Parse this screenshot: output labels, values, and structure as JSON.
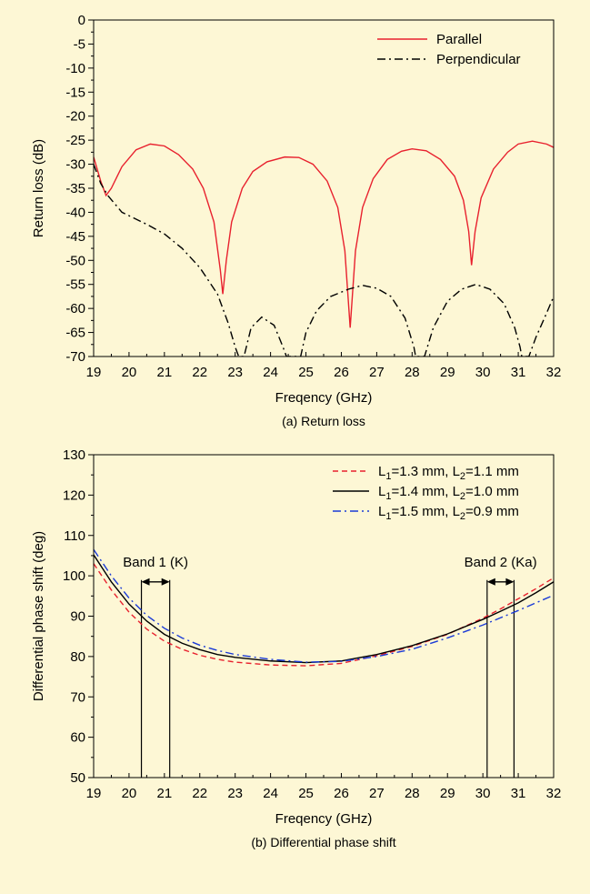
{
  "chart_data": [
    {
      "type": "line",
      "caption": "(a) Return loss",
      "xlabel": "Freqency (GHz)",
      "ylabel": "Return loss (dB)",
      "xlim": [
        19,
        32
      ],
      "ylim": [
        -70,
        0
      ],
      "xticks": [
        "19",
        "20",
        "21",
        "22",
        "23",
        "24",
        "25",
        "26",
        "27",
        "28",
        "29",
        "30",
        "31",
        "32"
      ],
      "yticks": [
        "0",
        "-5",
        "-10",
        "-15",
        "-20",
        "-25",
        "-30",
        "-35",
        "-40",
        "-45",
        "-50",
        "-55",
        "-60",
        "-65",
        "-70"
      ],
      "legend_position": "top-right",
      "grid": false,
      "series": [
        {
          "name": "Parallel",
          "color": "#e8212e",
          "dash": "solid",
          "points": [
            [
              19.0,
              -28.5
            ],
            [
              19.2,
              -33.5
            ],
            [
              19.35,
              -36.5
            ],
            [
              19.5,
              -35.0
            ],
            [
              19.8,
              -30.5
            ],
            [
              20.2,
              -27.0
            ],
            [
              20.6,
              -25.8
            ],
            [
              21.0,
              -26.2
            ],
            [
              21.4,
              -28.0
            ],
            [
              21.8,
              -31.0
            ],
            [
              22.1,
              -35.0
            ],
            [
              22.4,
              -42.0
            ],
            [
              22.58,
              -52.0
            ],
            [
              22.65,
              -57.0
            ],
            [
              22.75,
              -50.0
            ],
            [
              22.9,
              -42.0
            ],
            [
              23.2,
              -35.0
            ],
            [
              23.5,
              -31.5
            ],
            [
              23.9,
              -29.5
            ],
            [
              24.4,
              -28.5
            ],
            [
              24.8,
              -28.6
            ],
            [
              25.2,
              -30.0
            ],
            [
              25.6,
              -33.5
            ],
            [
              25.9,
              -39.0
            ],
            [
              26.1,
              -48.0
            ],
            [
              26.25,
              -64.0
            ],
            [
              26.4,
              -48.0
            ],
            [
              26.6,
              -39.0
            ],
            [
              26.9,
              -33.0
            ],
            [
              27.3,
              -29.0
            ],
            [
              27.7,
              -27.3
            ],
            [
              28.0,
              -26.8
            ],
            [
              28.4,
              -27.2
            ],
            [
              28.8,
              -29.0
            ],
            [
              29.2,
              -32.5
            ],
            [
              29.45,
              -37.5
            ],
            [
              29.6,
              -44.0
            ],
            [
              29.68,
              -51.0
            ],
            [
              29.78,
              -44.0
            ],
            [
              29.95,
              -37.0
            ],
            [
              30.3,
              -31.0
            ],
            [
              30.7,
              -27.5
            ],
            [
              31.0,
              -25.8
            ],
            [
              31.4,
              -25.2
            ],
            [
              31.8,
              -25.8
            ],
            [
              32.0,
              -26.5
            ]
          ]
        },
        {
          "name": "Perpendicular",
          "color": "#000000",
          "dash": "dashdot",
          "points": [
            [
              19.0,
              -30.0
            ],
            [
              19.2,
              -34.0
            ],
            [
              19.4,
              -36.5
            ],
            [
              19.8,
              -40.0
            ],
            [
              20.5,
              -42.5
            ],
            [
              21.0,
              -44.5
            ],
            [
              21.5,
              -47.5
            ],
            [
              22.0,
              -51.5
            ],
            [
              22.5,
              -57.0
            ],
            [
              22.8,
              -63.0
            ],
            [
              23.0,
              -68.0
            ],
            [
              23.1,
              -70.0
            ],
            [
              23.25,
              -70.0
            ],
            [
              23.45,
              -64.0
            ],
            [
              23.75,
              -61.8
            ],
            [
              24.1,
              -63.5
            ],
            [
              24.35,
              -68.0
            ],
            [
              24.45,
              -70.0
            ],
            [
              24.85,
              -70.0
            ],
            [
              25.0,
              -65.0
            ],
            [
              25.3,
              -60.5
            ],
            [
              25.7,
              -57.5
            ],
            [
              26.2,
              -56.0
            ],
            [
              26.6,
              -55.2
            ],
            [
              27.0,
              -55.8
            ],
            [
              27.4,
              -57.5
            ],
            [
              27.8,
              -62.0
            ],
            [
              28.05,
              -68.0
            ],
            [
              28.1,
              -70.0
            ],
            [
              28.35,
              -70.0
            ],
            [
              28.6,
              -64.0
            ],
            [
              29.0,
              -58.5
            ],
            [
              29.4,
              -56.0
            ],
            [
              29.8,
              -55.0
            ],
            [
              30.2,
              -56.0
            ],
            [
              30.6,
              -59.0
            ],
            [
              30.9,
              -64.0
            ],
            [
              31.05,
              -68.0
            ],
            [
              31.1,
              -70.0
            ],
            [
              31.3,
              -70.0
            ],
            [
              31.5,
              -66.0
            ],
            [
              31.8,
              -61.0
            ],
            [
              32.0,
              -57.5
            ]
          ]
        }
      ]
    },
    {
      "type": "line",
      "caption": "(b) Differential phase shift",
      "xlabel": "Freqency (GHz)",
      "ylabel": "Differential phase shift (deg)",
      "xlim": [
        19,
        32
      ],
      "ylim": [
        50,
        130
      ],
      "xticks": [
        "19",
        "20",
        "21",
        "22",
        "23",
        "24",
        "25",
        "26",
        "27",
        "28",
        "29",
        "30",
        "31",
        "32"
      ],
      "yticks": [
        "50",
        "60",
        "70",
        "80",
        "90",
        "100",
        "110",
        "120",
        "130"
      ],
      "legend_position": "top-right",
      "grid": false,
      "series": [
        {
          "name_parts": [
            "L",
            "1",
            "=1.3 mm, L",
            "2",
            "=1.1 mm"
          ],
          "color": "#e8212e",
          "dash": "dashed",
          "points": [
            [
              19.0,
              103.0
            ],
            [
              19.5,
              96.5
            ],
            [
              20.0,
              91.0
            ],
            [
              20.5,
              86.8
            ],
            [
              21.0,
              83.8
            ],
            [
              21.5,
              81.8
            ],
            [
              22.0,
              80.3
            ],
            [
              22.5,
              79.3
            ],
            [
              23.0,
              78.6
            ],
            [
              24.0,
              77.9
            ],
            [
              25.0,
              77.7
            ],
            [
              26.0,
              78.3
            ],
            [
              27.0,
              80.2
            ],
            [
              28.0,
              82.5
            ],
            [
              29.0,
              85.5
            ],
            [
              30.0,
              89.5
            ],
            [
              30.5,
              91.8
            ],
            [
              31.0,
              94.3
            ],
            [
              31.5,
              96.8
            ],
            [
              32.0,
              99.5
            ]
          ]
        },
        {
          "name_parts": [
            "L",
            "1",
            "=1.4 mm, L",
            "2",
            "=1.0 mm"
          ],
          "color": "#000000",
          "dash": "solid",
          "points": [
            [
              19.0,
              105.2
            ],
            [
              19.5,
              98.5
            ],
            [
              20.0,
              93.0
            ],
            [
              20.5,
              88.8
            ],
            [
              21.0,
              85.5
            ],
            [
              21.5,
              83.3
            ],
            [
              22.0,
              81.7
            ],
            [
              22.5,
              80.5
            ],
            [
              23.0,
              79.8
            ],
            [
              24.0,
              78.9
            ],
            [
              25.0,
              78.5
            ],
            [
              26.0,
              78.9
            ],
            [
              27.0,
              80.5
            ],
            [
              28.0,
              82.7
            ],
            [
              29.0,
              85.6
            ],
            [
              30.0,
              89.2
            ],
            [
              30.5,
              91.2
            ],
            [
              31.0,
              93.3
            ],
            [
              31.5,
              95.8
            ],
            [
              32.0,
              98.5
            ]
          ]
        },
        {
          "name_parts": [
            "L",
            "1",
            "=1.5 mm, L",
            "2",
            "=0.9 mm"
          ],
          "color": "#1a3ad6",
          "dash": "dashdot",
          "points": [
            [
              19.0,
              106.5
            ],
            [
              19.5,
              100.0
            ],
            [
              20.0,
              94.5
            ],
            [
              20.5,
              90.2
            ],
            [
              21.0,
              87.0
            ],
            [
              21.5,
              84.6
            ],
            [
              22.0,
              82.8
            ],
            [
              22.5,
              81.5
            ],
            [
              23.0,
              80.5
            ],
            [
              24.0,
              79.3
            ],
            [
              25.0,
              78.6
            ],
            [
              26.0,
              78.8
            ],
            [
              27.0,
              80.0
            ],
            [
              28.0,
              81.8
            ],
            [
              29.0,
              84.6
            ],
            [
              30.0,
              87.8
            ],
            [
              30.5,
              89.6
            ],
            [
              31.0,
              91.4
            ],
            [
              31.5,
              93.3
            ],
            [
              32.0,
              95.2
            ]
          ]
        }
      ],
      "bands": [
        {
          "label": "Band 1 (K)",
          "x_start": 20.35,
          "x_end": 21.15,
          "arrow_y": 98.5
        },
        {
          "label": "Band 2 (Ka)",
          "x_start": 30.12,
          "x_end": 30.88,
          "arrow_y": 98.5
        }
      ]
    }
  ]
}
